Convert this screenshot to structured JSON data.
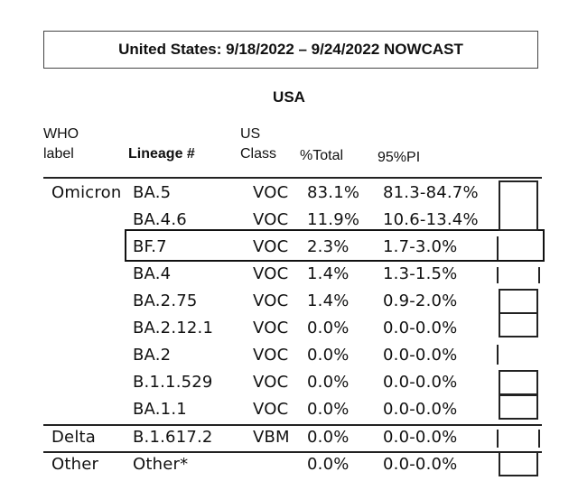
{
  "title": "United States: 9/18/2022 – 9/24/2022 NOWCAST",
  "region": "USA",
  "headers": {
    "who_label_line1": "WHO",
    "who_label_line2": "label",
    "lineage": "Lineage #",
    "us_class_line1": "US",
    "us_class_line2": "Class",
    "pct_total": "%Total",
    "pi": "95%PI"
  },
  "rows": [
    {
      "who": "Omicron",
      "lineage": "BA.5",
      "class": "VOC",
      "pct": "83.1%",
      "pi": "81.3-84.7%"
    },
    {
      "who": "",
      "lineage": "BA.4.6",
      "class": "VOC",
      "pct": "11.9%",
      "pi": "10.6-13.4%"
    },
    {
      "who": "",
      "lineage": "BF.7",
      "class": "VOC",
      "pct": "2.3%",
      "pi": "1.7-3.0%"
    },
    {
      "who": "",
      "lineage": "BA.4",
      "class": "VOC",
      "pct": "1.4%",
      "pi": "1.3-1.5%"
    },
    {
      "who": "",
      "lineage": "BA.2.75",
      "class": "VOC",
      "pct": "1.4%",
      "pi": "0.9-2.0%"
    },
    {
      "who": "",
      "lineage": "BA.2.12.1",
      "class": "VOC",
      "pct": "0.0%",
      "pi": "0.0-0.0%"
    },
    {
      "who": "",
      "lineage": "BA.2",
      "class": "VOC",
      "pct": "0.0%",
      "pi": "0.0-0.0%"
    },
    {
      "who": "",
      "lineage": "B.1.1.529",
      "class": "VOC",
      "pct": "0.0%",
      "pi": "0.0-0.0%"
    },
    {
      "who": "",
      "lineage": "BA.1.1",
      "class": "VOC",
      "pct": "0.0%",
      "pi": "0.0-0.0%"
    },
    {
      "who": "Delta",
      "lineage": "B.1.617.2",
      "class": "VBM",
      "pct": "0.0%",
      "pi": "0.0-0.0%"
    },
    {
      "who": "Other",
      "lineage": "Other*",
      "class": "",
      "pct": "0.0%",
      "pi": "0.0-0.0%"
    }
  ]
}
